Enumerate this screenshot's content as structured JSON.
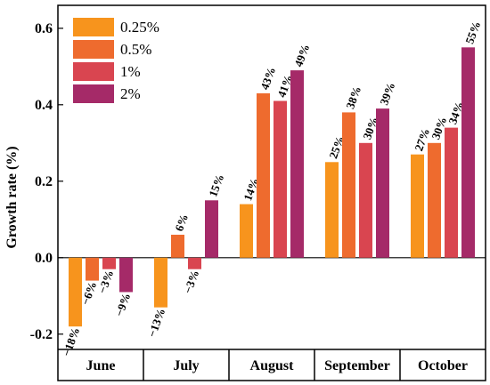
{
  "chart_data": {
    "type": "bar",
    "ylabel": "Growth rate (%)",
    "xlabel": "",
    "title": "",
    "ylim": [
      -0.24,
      0.66
    ],
    "yticks": [
      -0.2,
      0.0,
      0.2,
      0.4,
      0.6
    ],
    "ytick_labels": [
      "-0.2",
      "0.0",
      "0.2",
      "0.4",
      "0.6"
    ],
    "categories": [
      "June",
      "July",
      "August",
      "September",
      "October"
    ],
    "legend_position": "top-left",
    "series": [
      {
        "name": "0.25%",
        "color": "#F7941D",
        "values": [
          -0.18,
          -0.13,
          0.14,
          0.25,
          0.27
        ],
        "labels": [
          "−18%",
          "−13%",
          "14%",
          "25%",
          "27%"
        ]
      },
      {
        "name": "0.5%",
        "color": "#EE6B2E",
        "values": [
          -0.06,
          0.06,
          0.43,
          0.38,
          0.3
        ],
        "labels": [
          "−6%",
          "6%",
          "43%",
          "38%",
          "30%"
        ]
      },
      {
        "name": "1%",
        "color": "#D94550",
        "values": [
          -0.03,
          -0.03,
          0.41,
          0.3,
          0.34
        ],
        "labels": [
          "−3%",
          "−3%",
          "41%",
          "30%",
          "34%"
        ]
      },
      {
        "name": "2%",
        "color": "#A52A68",
        "values": [
          -0.09,
          0.15,
          0.49,
          0.39,
          0.55
        ],
        "labels": [
          "−9%",
          "15%",
          "49%",
          "39%",
          "55%"
        ]
      }
    ],
    "visible_labels": [
      [
        0,
        1,
        2,
        3
      ],
      [
        0,
        1,
        2,
        3
      ],
      [
        0,
        1,
        2,
        3
      ],
      [
        0,
        1,
        2,
        3
      ],
      [
        0,
        1,
        2,
        3
      ]
    ]
  }
}
